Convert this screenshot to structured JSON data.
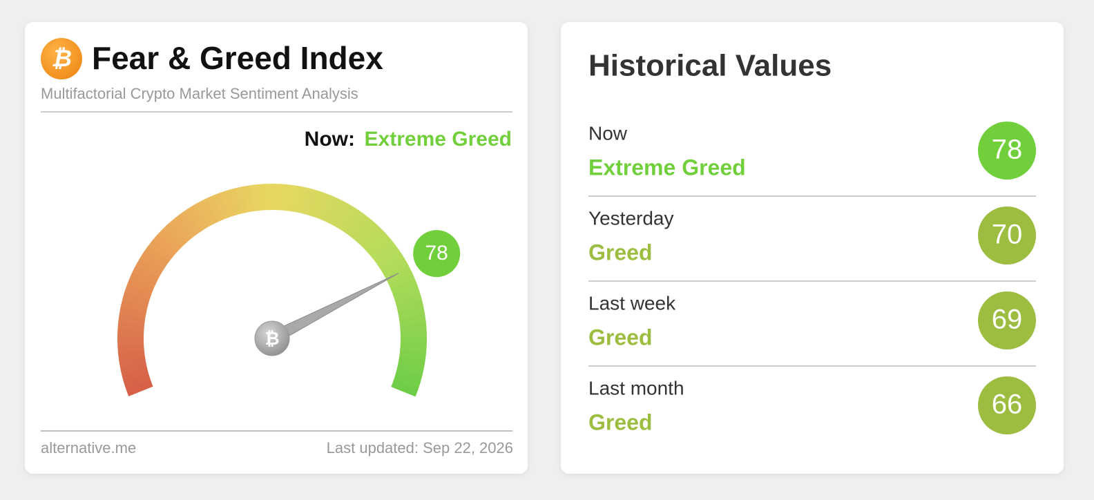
{
  "fear_greed": {
    "title": "Fear & Greed Index",
    "subtitle": "Multifactorial Crypto Market Sentiment Analysis",
    "now_label": "Now:",
    "now_class": "Extreme Greed",
    "now_color": "#72cf3c",
    "gauge": {
      "value": 78,
      "range": [
        0,
        100
      ],
      "color": "#72cf3c"
    },
    "source": "alternative.me",
    "updated": "Last updated: Sep 22, 2026"
  },
  "historical": {
    "title": "Historical Values",
    "rows": [
      {
        "period": "Now",
        "class": "Extreme Greed",
        "value": 78,
        "color": "#72cf3c"
      },
      {
        "period": "Yesterday",
        "class": "Greed",
        "value": 70,
        "color": "#9cbd40"
      },
      {
        "period": "Last week",
        "class": "Greed",
        "value": 69,
        "color": "#9cbd40"
      },
      {
        "period": "Last month",
        "class": "Greed",
        "value": 66,
        "color": "#9cbd40"
      }
    ]
  }
}
